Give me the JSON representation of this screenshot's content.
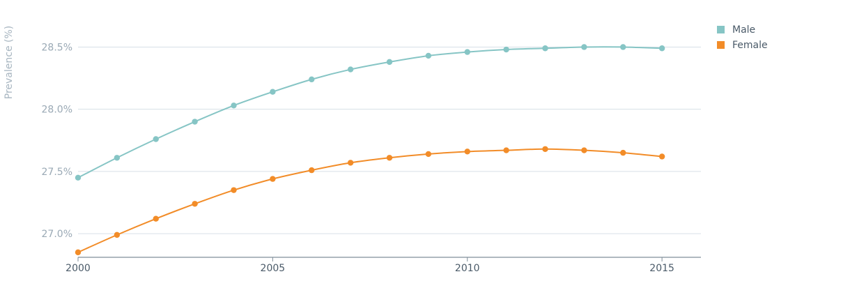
{
  "chart_data": {
    "type": "line",
    "ylabel": "Prevalence (%)",
    "xlabel": "",
    "x": [
      2000,
      2001,
      2002,
      2003,
      2004,
      2005,
      2006,
      2007,
      2008,
      2009,
      2010,
      2011,
      2012,
      2013,
      2014,
      2015
    ],
    "x_ticks": [
      2000,
      2005,
      2010,
      2015
    ],
    "x_tick_labels": [
      "2000",
      "2005",
      "2010",
      "2015"
    ],
    "xlim": [
      2000,
      2016
    ],
    "y_ticks": [
      27.0,
      27.5,
      28.0,
      28.5
    ],
    "y_tick_labels": [
      "27.0%",
      "27.5%",
      "28.0%",
      "28.5%"
    ],
    "ylim": [
      26.81,
      28.71
    ],
    "grid": true,
    "legend_position": "top-right",
    "series": [
      {
        "name": "Male",
        "color": "#86c5c5",
        "values": [
          27.45,
          27.61,
          27.76,
          27.9,
          28.03,
          28.14,
          28.24,
          28.32,
          28.38,
          28.43,
          28.46,
          28.48,
          28.49,
          28.5,
          28.5,
          28.49
        ]
      },
      {
        "name": "Female",
        "color": "#f28c28",
        "values": [
          26.85,
          26.99,
          27.12,
          27.24,
          27.35,
          27.44,
          27.51,
          27.57,
          27.61,
          27.64,
          27.66,
          27.67,
          27.68,
          27.67,
          27.65,
          27.62
        ]
      }
    ]
  }
}
